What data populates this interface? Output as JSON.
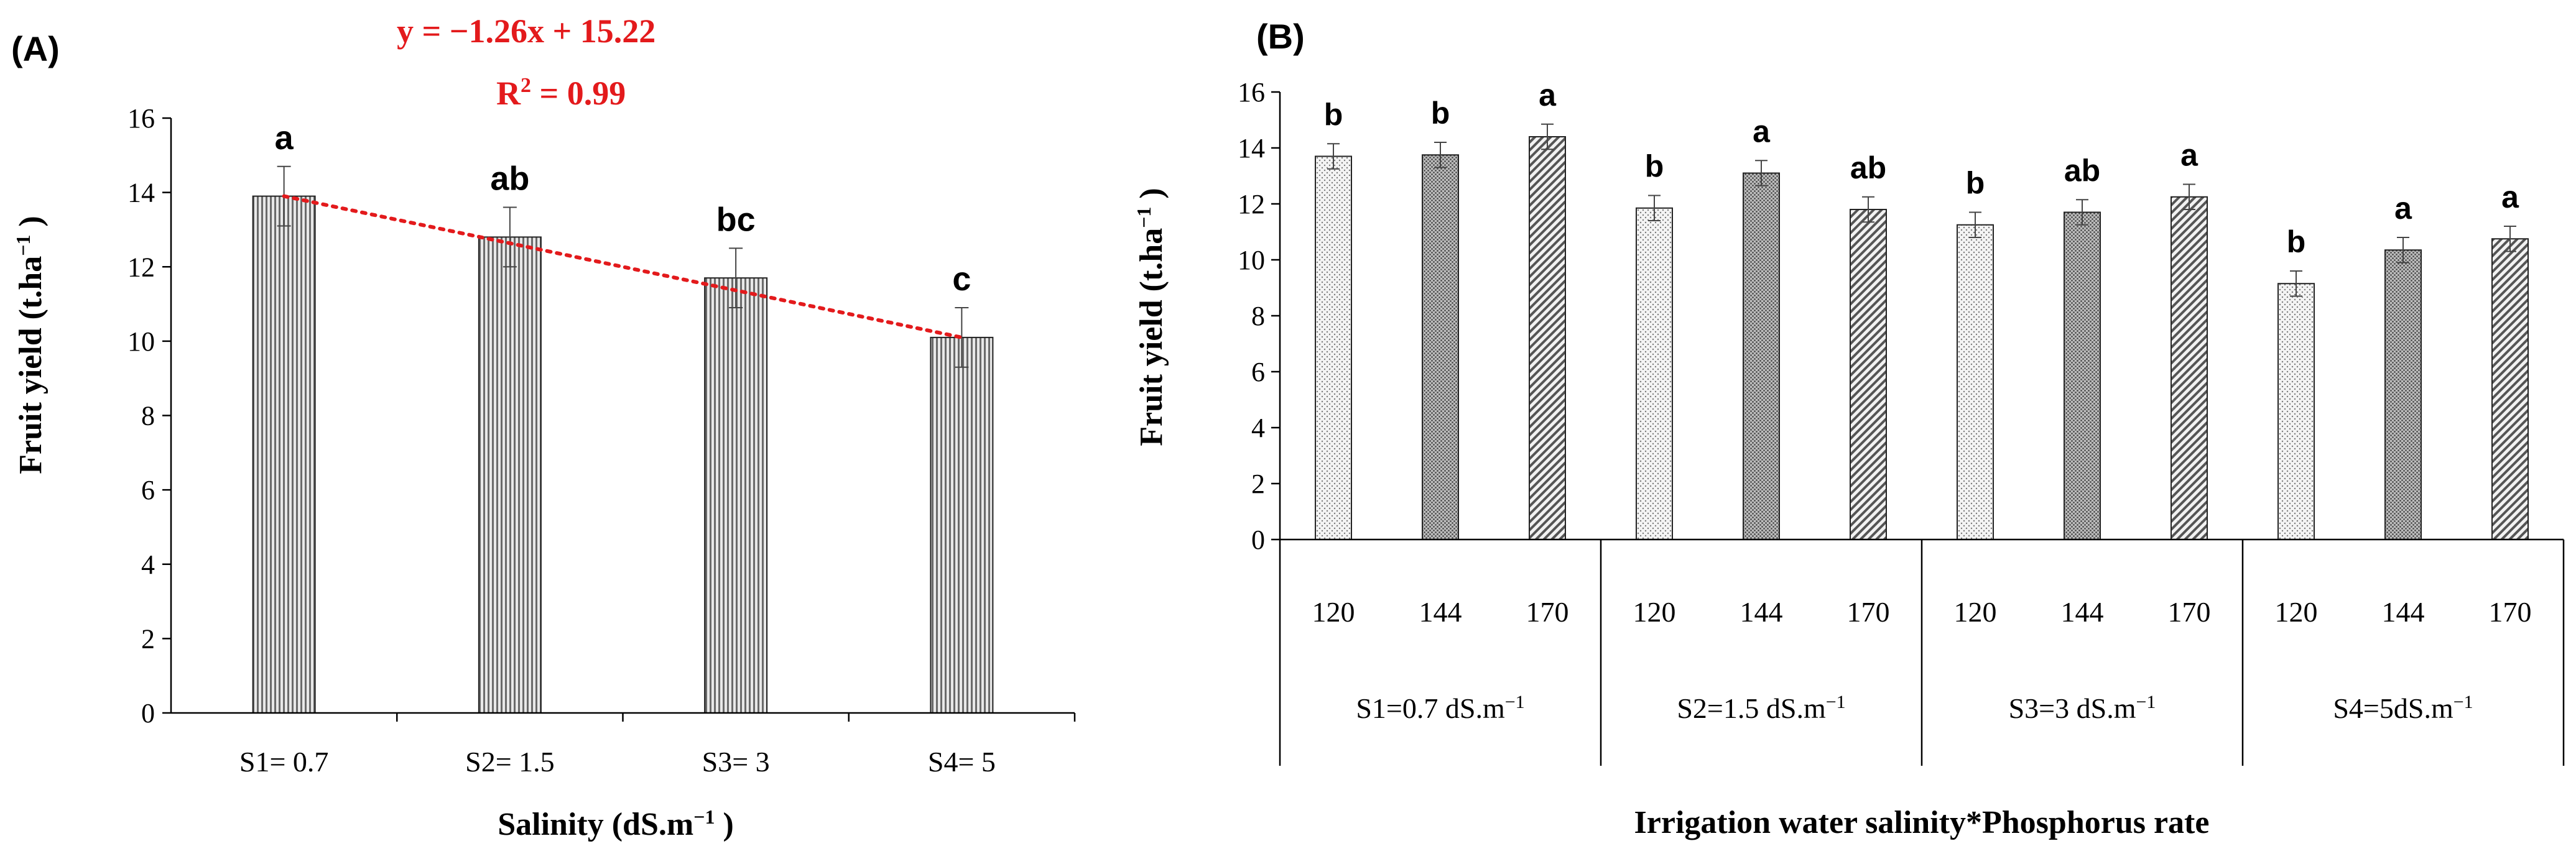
{
  "colors": {
    "trend": "#e31a1c",
    "axis": "#000000",
    "bar_stroke": "#222222"
  },
  "chart_data": [
    {
      "type": "bar",
      "panel_label": "(A)",
      "categories": [
        "S1= 0.7",
        "S2= 1.5",
        "S3= 3",
        "S4= 5"
      ],
      "values": [
        13.9,
        12.8,
        11.7,
        10.1
      ],
      "errors": [
        0.8,
        0.8,
        0.8,
        0.8
      ],
      "letters": [
        "a",
        "ab",
        "bc",
        "c"
      ],
      "ylim": [
        0,
        16
      ],
      "yticks": [
        "0",
        "2",
        "4",
        "6",
        "8",
        "10",
        "12",
        "14",
        "16"
      ],
      "ylabel_main": "Fruit yield (t.ha",
      "ylabel_sup": "−1",
      "ylabel_end": " )",
      "xlabel_main": "Salinity (dS.m",
      "xlabel_sup": "−1",
      "xlabel_end": " )",
      "trendline": {
        "equation": "y = −1.26x + 15.22",
        "r2_main": "R",
        "r2_sup": "2",
        "r2_end": " = 0.99",
        "color": "#e31a1c"
      }
    },
    {
      "type": "bar",
      "panel_label": "(B)",
      "groups": [
        {
          "label": "S1=0.7 dS.m",
          "sup": "−1"
        },
        {
          "label": "S2=1.5 dS.m",
          "sup": "−1"
        },
        {
          "label": "S3=3 dS.m",
          "sup": "−1"
        },
        {
          "label": "S4=5dS.m",
          "sup": "−1"
        }
      ],
      "subcategories": [
        "120",
        "144",
        "170"
      ],
      "values": [
        13.7,
        13.75,
        14.4,
        11.85,
        13.1,
        11.8,
        11.25,
        11.7,
        12.25,
        9.15,
        10.35,
        10.75
      ],
      "errors": [
        0.45,
        0.45,
        0.45,
        0.45,
        0.45,
        0.45,
        0.45,
        0.45,
        0.45,
        0.45,
        0.45,
        0.45
      ],
      "letters": [
        "b",
        "b",
        "a",
        "b",
        "a",
        "ab",
        "b",
        "ab",
        "a",
        "b",
        "a",
        "a"
      ],
      "ylim": [
        0,
        16
      ],
      "yticks": [
        "0",
        "2",
        "4",
        "6",
        "8",
        "10",
        "12",
        "14",
        "16"
      ],
      "ylabel_main": "Fruit yield (t.ha",
      "ylabel_sup": "−1",
      "ylabel_end": " )",
      "xlabel": "Irrigation water salinity*Phosphorus rate"
    }
  ]
}
